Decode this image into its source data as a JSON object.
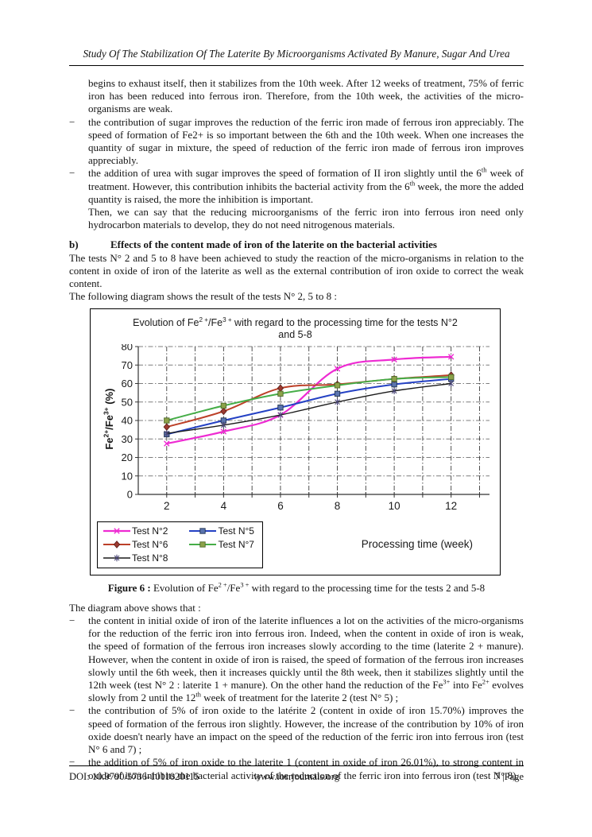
{
  "header": {
    "title": "Study Of The Stabilization Of The Laterite By Microorganisms Activated By Manure, Sugar And Urea"
  },
  "content": {
    "p1": [
      {
        "t": "begins to exhaust itself, then it stabilizes from the 10th week. After 12 weeks of treatment, 75% of ferric iron has been reduced into ferrous iron. Therefore, from the 10th week, the activities of the micro-organisms are weak."
      }
    ],
    "dash": "−",
    "li1": [
      {
        "t": "the contribution of sugar improves the reduction of the ferric iron made of ferrous iron appreciably. The speed of formation of Fe2+ is so important between the 6th and the 10th week. When one increases the quantity of sugar in mixture, the speed of reduction of the ferric iron made of ferrous iron improves appreciably."
      }
    ],
    "li2": [
      {
        "t": "the addition of urea with sugar improves the speed of formation of II iron slightly until the 6"
      },
      {
        "t": "th",
        "sup": true
      },
      {
        "t": " week of treatment. However, this contribution inhibits the bacterial activity from the 6"
      },
      {
        "t": "th",
        "sup": true
      },
      {
        "t": " week, the more the added quantity is raised, the more the inhibition is important."
      }
    ],
    "p2": [
      {
        "t": "Then, we can say that the reducing microorganisms of the ferric iron into ferrous iron need only hydrocarbon materials to develop, they do not need nitrogenous materials."
      }
    ],
    "heading": {
      "label": "b)",
      "text": "Effects of the content made of iron of the laterite on the bacterial activities"
    },
    "p3": [
      {
        "t": "The tests N° 2 and 5 to 8 have been achieved to study the reaction of the micro-organisms in relation to the content in oxide of iron of the laterite as well as the external contribution of iron oxide to correct the weak content."
      }
    ],
    "p4": [
      {
        "t": "The following diagram shows the result of the tests N° 2, 5 to 8 :"
      }
    ],
    "figure_caption": [
      {
        "t": "Figure 6 : ",
        "b": true
      },
      {
        "t": "Evolution of Fe"
      },
      {
        "t": "2 +",
        "sup": true
      },
      {
        "t": "/Fe"
      },
      {
        "t": "3 +",
        "sup": true
      },
      {
        "t": " with regard to the processing time for the tests 2 and 5-8"
      }
    ],
    "p5": [
      {
        "t": "The diagram above shows that :"
      }
    ],
    "li3": [
      {
        "t": "the content in initial oxide of iron of the laterite influences a lot on the activities of the micro-organisms for the reduction of the ferric iron into ferrous iron. Indeed, when the content in oxide of iron is weak, the speed of formation of the ferrous iron increases slowly according to the time (laterite 2 + manure). However, when the content in oxide of iron is raised, the speed of formation of the ferrous iron increases slowly until the 6th week, then it increases quickly until the 8th week, then it stabilizes slightly until the 12th week (test N° 2 : laterite 1 + manure). On the other hand the reduction of the Fe"
      },
      {
        "t": "3+",
        "sup": true
      },
      {
        "t": " into Fe"
      },
      {
        "t": "2+",
        "sup": true
      },
      {
        "t": " evolves slowly from 2 until the 12"
      },
      {
        "t": "th",
        "sup": true
      },
      {
        "t": " week of treatment for the laterite 2 (test N° 5) ;"
      }
    ],
    "li4": [
      {
        "t": "the contribution of 5% of iron oxide to the latérite 2 (content in oxide of iron 15.70%) improves the speed of formation of the ferrous iron slightly. However, the increase of the contribution by 10% of iron oxide doesn't nearly have an impact on the speed of the reduction of the ferric iron into ferrous iron (test N° 6 and 7) ;"
      }
    ],
    "li5": [
      {
        "t": "the addition of 5% of iron oxide to the laterite 1 (content in oxide of iron 26.01%), to strong content in oxide of iron inhibits the bacterial activity of the reduction of the ferric iron into ferrous iron (test N° 8)."
      }
    ]
  },
  "chart_data": {
    "type": "line",
    "title": "Evolution of Fe2+/Fe3+ with regard to the processing time for the tests  N°2 and 5-8",
    "title_segments": [
      {
        "t": "Evolution of Fe"
      },
      {
        "t": "2 +",
        "sup": true
      },
      {
        "t": "/Fe"
      },
      {
        "t": "3 +",
        "sup": true
      },
      {
        "t": " with regard to the processing time for the tests  N°2 and 5-8"
      }
    ],
    "ylabel": "Fe2+/Fe3+ (%)",
    "ylabel_segments": [
      {
        "t": "Fe"
      },
      {
        "t": "2+",
        "sup": true
      },
      {
        "t": "/Fe"
      },
      {
        "t": "3+",
        "sup": true
      },
      {
        "t": " (%)"
      }
    ],
    "xlabel": "Processing time (week)",
    "x": [
      2,
      4,
      6,
      8,
      10,
      12
    ],
    "x_labels": [
      2,
      4,
      6,
      8,
      10,
      12
    ],
    "x_gridlines": [
      2,
      3,
      4,
      5,
      6,
      7,
      8,
      9,
      10,
      11,
      12,
      13
    ],
    "yticks": [
      0,
      10,
      20,
      30,
      40,
      50,
      60,
      70,
      80
    ],
    "xlim": [
      1,
      13.35
    ],
    "ylim": [
      0,
      80
    ],
    "grid": "dash-dot",
    "legend_position": "bottom-left",
    "series": [
      {
        "name": "Test N°2",
        "color": "#ee2bd2",
        "marker": "x",
        "marker_color": "#ee2bd2",
        "width": 2.2,
        "values": [
          27.5,
          34,
          43,
          68,
          73,
          74.5
        ]
      },
      {
        "name": "Test N°5",
        "color": "#2441c4",
        "marker": "square",
        "marker_color": "#5b74ae",
        "marker_stroke": "#1f3250",
        "width": 2,
        "values": [
          32.5,
          40,
          47,
          54.5,
          59.5,
          62.5
        ]
      },
      {
        "name": "Test N°6",
        "color": "#bc4028",
        "marker": "diamond",
        "marker_color": "#9c3a30",
        "marker_stroke": "#5e211b",
        "width": 2,
        "values": [
          36.5,
          45,
          57.5,
          59.5,
          62.5,
          64.5
        ]
      },
      {
        "name": "Test N°7",
        "color": "#45ad47",
        "marker": "square",
        "marker_color": "#8ca24a",
        "marker_stroke": "#4f6b2a",
        "width": 2,
        "values": [
          40,
          48,
          54.5,
          59,
          62.5,
          63.5
        ]
      },
      {
        "name": "Test N°8",
        "color": "#1a1a1a",
        "marker": "asterisk",
        "marker_color": "#4c4878",
        "width": 1.4,
        "values": [
          33,
          37.5,
          43,
          50,
          56,
          60
        ]
      }
    ]
  },
  "footer": {
    "doi": "DOI: 10.9790/5736-1011020115",
    "site": "www.iosrjournals.org",
    "page": "7 |Page"
  }
}
